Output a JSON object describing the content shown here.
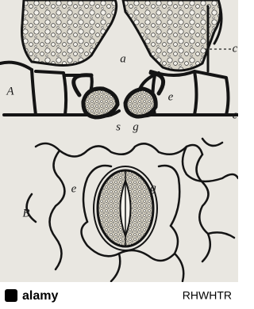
{
  "figure": {
    "labels": [
      "a",
      "c",
      "A",
      "e",
      "c",
      "s",
      "g",
      "B",
      "e",
      "g"
    ]
  },
  "watermark": {
    "brand": "alamy",
    "id": "RHWHTR"
  }
}
